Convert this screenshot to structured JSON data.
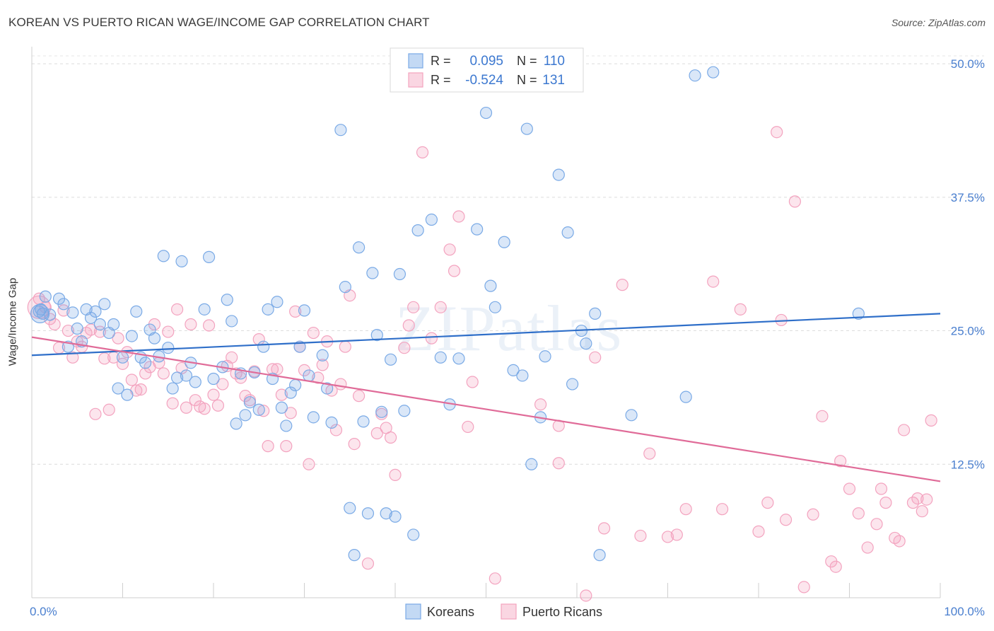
{
  "title": "KOREAN VS PUERTO RICAN WAGE/INCOME GAP CORRELATION CHART",
  "source": "Source: ZipAtlas.com",
  "watermark": "ZIPatlas",
  "chart_data": {
    "type": "scatter",
    "ylabel": "Wage/Income Gap",
    "xlim": [
      0,
      100
    ],
    "ylim": [
      0,
      51
    ],
    "x_tick_labels": [
      "0.0%",
      "100.0%"
    ],
    "y_ticks": [
      12.5,
      25.0,
      37.5,
      50.0
    ],
    "y_tick_labels": [
      "12.5%",
      "25.0%",
      "37.5%",
      "50.0%"
    ],
    "grid": "dashed horizontal",
    "legend_position": "top-center",
    "stats": [
      {
        "r_label": "R =",
        "r": "0.095",
        "n_label": "N =",
        "n": "110",
        "color": "#6fa0e0"
      },
      {
        "r_label": "R =",
        "r": "-0.524",
        "n_label": "N =",
        "n": "131",
        "color": "#ee8fb0"
      }
    ],
    "series": [
      {
        "name": "Koreans",
        "color": "#7aaae6",
        "line_color": "#2f6fc9",
        "trend": [
          [
            0,
            22.7
          ],
          [
            100,
            26.6
          ]
        ],
        "points": [
          [
            0.8,
            26.8
          ],
          [
            1.0,
            27.0
          ],
          [
            1.5,
            28.2
          ],
          [
            1.2,
            26.6
          ],
          [
            2.0,
            26.5
          ],
          [
            3.0,
            28.0
          ],
          [
            3.5,
            27.5
          ],
          [
            4.0,
            23.5
          ],
          [
            4.5,
            26.7
          ],
          [
            5.0,
            25.2
          ],
          [
            5.5,
            24.0
          ],
          [
            6.0,
            27.0
          ],
          [
            6.5,
            26.2
          ],
          [
            7.0,
            26.8
          ],
          [
            7.5,
            25.6
          ],
          [
            8.0,
            27.5
          ],
          [
            8.5,
            24.8
          ],
          [
            9.0,
            25.6
          ],
          [
            9.5,
            19.6
          ],
          [
            10.0,
            22.5
          ],
          [
            10.5,
            19.0
          ],
          [
            11.0,
            24.5
          ],
          [
            11.5,
            26.8
          ],
          [
            12.0,
            22.5
          ],
          [
            12.5,
            22.0
          ],
          [
            13.0,
            25.1
          ],
          [
            13.5,
            24.3
          ],
          [
            14.0,
            22.6
          ],
          [
            14.5,
            32.0
          ],
          [
            15.0,
            23.4
          ],
          [
            15.5,
            19.6
          ],
          [
            16.0,
            20.6
          ],
          [
            16.5,
            31.5
          ],
          [
            17.0,
            20.8
          ],
          [
            17.5,
            22.0
          ],
          [
            18.0,
            20.2
          ],
          [
            19.0,
            27.0
          ],
          [
            19.5,
            31.9
          ],
          [
            20.0,
            20.5
          ],
          [
            21.0,
            21.6
          ],
          [
            21.5,
            27.9
          ],
          [
            22.0,
            25.9
          ],
          [
            22.5,
            16.3
          ],
          [
            23.0,
            21.0
          ],
          [
            23.5,
            17.1
          ],
          [
            24.0,
            18.3
          ],
          [
            24.5,
            21.1
          ],
          [
            25.0,
            17.6
          ],
          [
            25.5,
            23.5
          ],
          [
            26.0,
            27.0
          ],
          [
            26.5,
            20.5
          ],
          [
            27.0,
            27.7
          ],
          [
            27.5,
            17.8
          ],
          [
            28.0,
            16.1
          ],
          [
            28.5,
            19.2
          ],
          [
            29.0,
            19.9
          ],
          [
            29.5,
            23.5
          ],
          [
            30.0,
            26.9
          ],
          [
            30.5,
            20.8
          ],
          [
            31.0,
            16.9
          ],
          [
            32.0,
            22.7
          ],
          [
            32.5,
            19.6
          ],
          [
            33.0,
            16.4
          ],
          [
            34.0,
            43.8
          ],
          [
            34.5,
            29.1
          ],
          [
            35.0,
            8.4
          ],
          [
            35.5,
            4.0
          ],
          [
            36.0,
            32.8
          ],
          [
            36.5,
            16.5
          ],
          [
            37.0,
            7.9
          ],
          [
            37.5,
            30.4
          ],
          [
            38.0,
            24.6
          ],
          [
            38.5,
            17.4
          ],
          [
            39.0,
            7.9
          ],
          [
            39.5,
            22.3
          ],
          [
            40.0,
            7.6
          ],
          [
            40.5,
            30.3
          ],
          [
            41.0,
            17.5
          ],
          [
            42.0,
            5.9
          ],
          [
            42.5,
            34.4
          ],
          [
            44.0,
            35.4
          ],
          [
            45.0,
            22.5
          ],
          [
            46.0,
            18.1
          ],
          [
            47.0,
            22.4
          ],
          [
            49.0,
            34.5
          ],
          [
            50.0,
            45.4
          ],
          [
            50.5,
            29.2
          ],
          [
            51.0,
            27.2
          ],
          [
            52.0,
            33.3
          ],
          [
            53.0,
            21.3
          ],
          [
            54.0,
            20.8
          ],
          [
            54.5,
            43.9
          ],
          [
            55.0,
            12.5
          ],
          [
            56.0,
            16.9
          ],
          [
            56.5,
            22.6
          ],
          [
            58.0,
            39.6
          ],
          [
            59.0,
            34.2
          ],
          [
            59.5,
            20.0
          ],
          [
            60.5,
            25.0
          ],
          [
            61.0,
            23.8
          ],
          [
            62.0,
            26.6
          ],
          [
            62.5,
            4.0
          ],
          [
            66.0,
            17.1
          ],
          [
            72.0,
            18.8
          ],
          [
            73.0,
            48.9
          ],
          [
            75.0,
            49.2
          ],
          [
            91.0,
            26.6
          ]
        ]
      },
      {
        "name": "Puerto Ricans",
        "color": "#f3a3bf",
        "line_color": "#e06b98",
        "trend": [
          [
            0,
            24.4
          ],
          [
            100,
            10.9
          ]
        ],
        "points": [
          [
            0.8,
            28.0
          ],
          [
            1.5,
            27.2
          ],
          [
            2.0,
            26.1
          ],
          [
            2.5,
            25.6
          ],
          [
            3.0,
            23.4
          ],
          [
            3.5,
            26.9
          ],
          [
            4.0,
            25.0
          ],
          [
            4.5,
            22.5
          ],
          [
            5.0,
            24.0
          ],
          [
            5.5,
            23.5
          ],
          [
            6.0,
            24.8
          ],
          [
            6.5,
            25.1
          ],
          [
            7.0,
            17.2
          ],
          [
            7.5,
            24.9
          ],
          [
            8.0,
            22.4
          ],
          [
            8.5,
            17.6
          ],
          [
            9.0,
            22.5
          ],
          [
            9.5,
            24.3
          ],
          [
            10.0,
            21.9
          ],
          [
            10.5,
            23.0
          ],
          [
            11.0,
            20.4
          ],
          [
            11.5,
            19.4
          ],
          [
            12.0,
            19.5
          ],
          [
            12.5,
            21.0
          ],
          [
            13.0,
            21.6
          ],
          [
            13.5,
            25.6
          ],
          [
            14.0,
            22.0
          ],
          [
            14.5,
            21.0
          ],
          [
            15.0,
            24.9
          ],
          [
            15.5,
            18.2
          ],
          [
            16.0,
            27.0
          ],
          [
            16.5,
            21.5
          ],
          [
            17.0,
            17.8
          ],
          [
            17.5,
            25.6
          ],
          [
            18.0,
            18.5
          ],
          [
            18.5,
            17.9
          ],
          [
            19.0,
            17.7
          ],
          [
            19.5,
            25.5
          ],
          [
            20.0,
            19.0
          ],
          [
            20.5,
            18.0
          ],
          [
            21.0,
            20.0
          ],
          [
            21.5,
            21.7
          ],
          [
            22.0,
            22.5
          ],
          [
            22.5,
            21.0
          ],
          [
            23.0,
            20.6
          ],
          [
            23.5,
            18.9
          ],
          [
            24.0,
            18.5
          ],
          [
            24.5,
            21.2
          ],
          [
            25.0,
            24.2
          ],
          [
            25.5,
            17.5
          ],
          [
            26.0,
            14.2
          ],
          [
            26.5,
            21.4
          ],
          [
            27.0,
            21.4
          ],
          [
            27.5,
            19.0
          ],
          [
            28.0,
            14.2
          ],
          [
            28.5,
            17.3
          ],
          [
            29.0,
            26.8
          ],
          [
            29.5,
            23.5
          ],
          [
            30.0,
            21.3
          ],
          [
            30.5,
            12.5
          ],
          [
            31.0,
            24.8
          ],
          [
            31.5,
            20.6
          ],
          [
            32.0,
            21.8
          ],
          [
            32.5,
            24.0
          ],
          [
            33.0,
            19.4
          ],
          [
            33.5,
            15.7
          ],
          [
            34.0,
            20.0
          ],
          [
            34.5,
            23.5
          ],
          [
            35.0,
            28.3
          ],
          [
            35.5,
            14.4
          ],
          [
            36.0,
            18.9
          ],
          [
            37.0,
            3.2
          ],
          [
            38.0,
            15.4
          ],
          [
            38.5,
            17.2
          ],
          [
            39.0,
            15.9
          ],
          [
            39.5,
            15.0
          ],
          [
            40.0,
            11.5
          ],
          [
            41.0,
            23.4
          ],
          [
            41.5,
            25.5
          ],
          [
            42.0,
            27.2
          ],
          [
            43.0,
            41.7
          ],
          [
            44.0,
            24.3
          ],
          [
            45.0,
            27.2
          ],
          [
            46.0,
            32.6
          ],
          [
            46.5,
            30.6
          ],
          [
            47.0,
            35.7
          ],
          [
            48.0,
            16.0
          ],
          [
            48.5,
            20.2
          ],
          [
            51.0,
            1.8
          ],
          [
            56.0,
            18.1
          ],
          [
            58.0,
            16.1
          ],
          [
            62.0,
            22.5
          ],
          [
            63.0,
            6.5
          ],
          [
            65.0,
            29.3
          ],
          [
            67.0,
            5.8
          ],
          [
            68.0,
            13.5
          ],
          [
            70.0,
            5.7
          ],
          [
            71.0,
            5.9
          ],
          [
            72.0,
            8.3
          ],
          [
            75.0,
            29.6
          ],
          [
            76.0,
            8.3
          ],
          [
            78.0,
            27.0
          ],
          [
            80.0,
            6.2
          ],
          [
            81.0,
            8.9
          ],
          [
            82.0,
            43.6
          ],
          [
            82.5,
            26.0
          ],
          [
            83.0,
            7.3
          ],
          [
            84.0,
            37.1
          ],
          [
            85.0,
            1.0
          ],
          [
            86.0,
            7.8
          ],
          [
            87.0,
            17.0
          ],
          [
            88.0,
            3.4
          ],
          [
            88.5,
            2.9
          ],
          [
            89.0,
            12.8
          ],
          [
            90.0,
            10.2
          ],
          [
            91.0,
            7.9
          ],
          [
            92.0,
            4.7
          ],
          [
            93.0,
            6.9
          ],
          [
            93.5,
            10.2
          ],
          [
            94.0,
            8.9
          ],
          [
            95.0,
            5.6
          ],
          [
            95.5,
            5.3
          ],
          [
            96.0,
            15.7
          ],
          [
            97.0,
            8.9
          ],
          [
            97.5,
            9.3
          ],
          [
            98.0,
            8.1
          ],
          [
            98.5,
            9.2
          ],
          [
            99.0,
            16.6
          ],
          [
            58.0,
            12.6
          ],
          [
            61.0,
            0.2
          ]
        ]
      }
    ]
  }
}
